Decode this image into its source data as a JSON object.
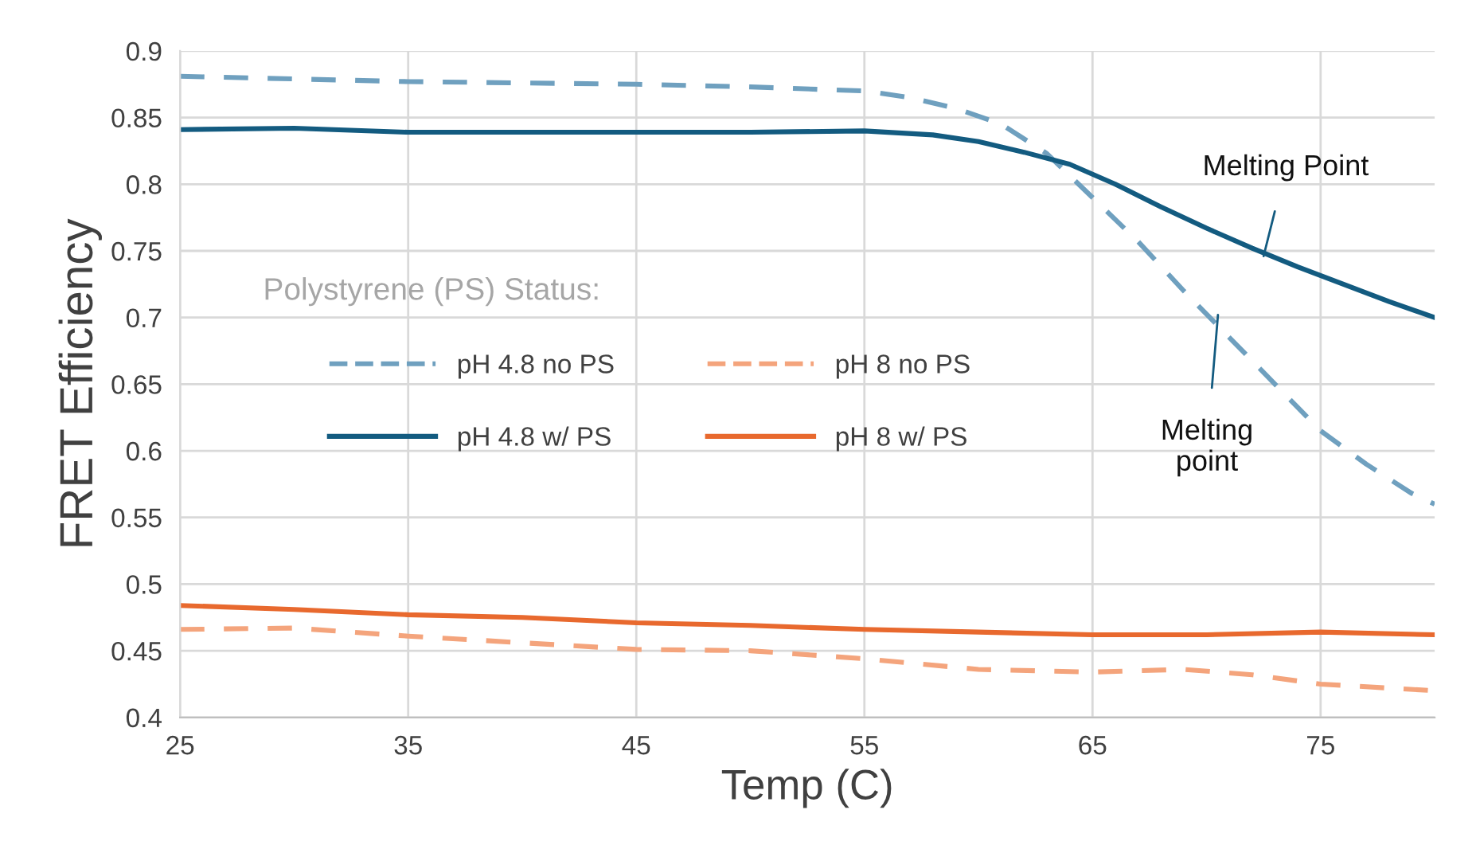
{
  "chart_data": {
    "type": "line",
    "xlabel": "Temp (C)",
    "ylabel": "FRET Efficiency",
    "legend_title": "Polystyrene (PS) Status:",
    "xlim": [
      25,
      80
    ],
    "xticks": [
      25,
      35,
      45,
      55,
      65,
      75
    ],
    "ylim": [
      0.4,
      0.9
    ],
    "yticks": [
      0.4,
      0.45,
      0.5,
      0.55,
      0.6,
      0.65,
      0.7,
      0.75,
      0.8,
      0.85,
      0.9
    ],
    "grid": true,
    "legend": "center left",
    "marker": "none",
    "series": [
      {
        "name": "pH 4.8 no PS",
        "color": "#6fa0bf",
        "line_style": "dashed",
        "x": [
          25,
          30,
          35,
          40,
          45,
          50,
          55,
          57,
          59,
          61,
          63,
          65,
          67,
          69,
          71,
          73,
          75,
          77,
          79,
          80
        ],
        "values": [
          0.881,
          0.879,
          0.877,
          0.876,
          0.875,
          0.873,
          0.87,
          0.865,
          0.857,
          0.845,
          0.823,
          0.79,
          0.757,
          0.72,
          0.685,
          0.65,
          0.615,
          0.59,
          0.568,
          0.56
        ]
      },
      {
        "name": "pH 4.8 w/ PS",
        "color": "#135b80",
        "line_style": "solid",
        "x": [
          25,
          30,
          35,
          40,
          45,
          50,
          55,
          58,
          60,
          62,
          64,
          66,
          68,
          70,
          72,
          74,
          76,
          78,
          80
        ],
        "values": [
          0.841,
          0.842,
          0.839,
          0.839,
          0.839,
          0.839,
          0.84,
          0.837,
          0.832,
          0.824,
          0.815,
          0.8,
          0.783,
          0.767,
          0.752,
          0.738,
          0.725,
          0.712,
          0.7
        ]
      },
      {
        "name": "pH 8 no PS",
        "color": "#f4a47c",
        "line_style": "dashed",
        "x": [
          25,
          30,
          35,
          40,
          45,
          50,
          55,
          60,
          65,
          69,
          72,
          75,
          80
        ],
        "values": [
          0.466,
          0.467,
          0.461,
          0.456,
          0.451,
          0.45,
          0.444,
          0.436,
          0.434,
          0.436,
          0.432,
          0.425,
          0.42
        ]
      },
      {
        "name": "pH 8 w/ PS",
        "color": "#e8692e",
        "line_style": "solid",
        "x": [
          25,
          30,
          35,
          40,
          45,
          50,
          55,
          60,
          65,
          70,
          75,
          80
        ],
        "values": [
          0.484,
          0.481,
          0.477,
          0.475,
          0.471,
          0.469,
          0.466,
          0.464,
          0.462,
          0.462,
          0.464,
          0.462
        ]
      }
    ],
    "annotations": [
      {
        "text": "Melting Point",
        "x": 72.5,
        "y": 0.746
      },
      {
        "text": "Melting\npoint",
        "x": 70.5,
        "y": 0.702
      }
    ]
  }
}
